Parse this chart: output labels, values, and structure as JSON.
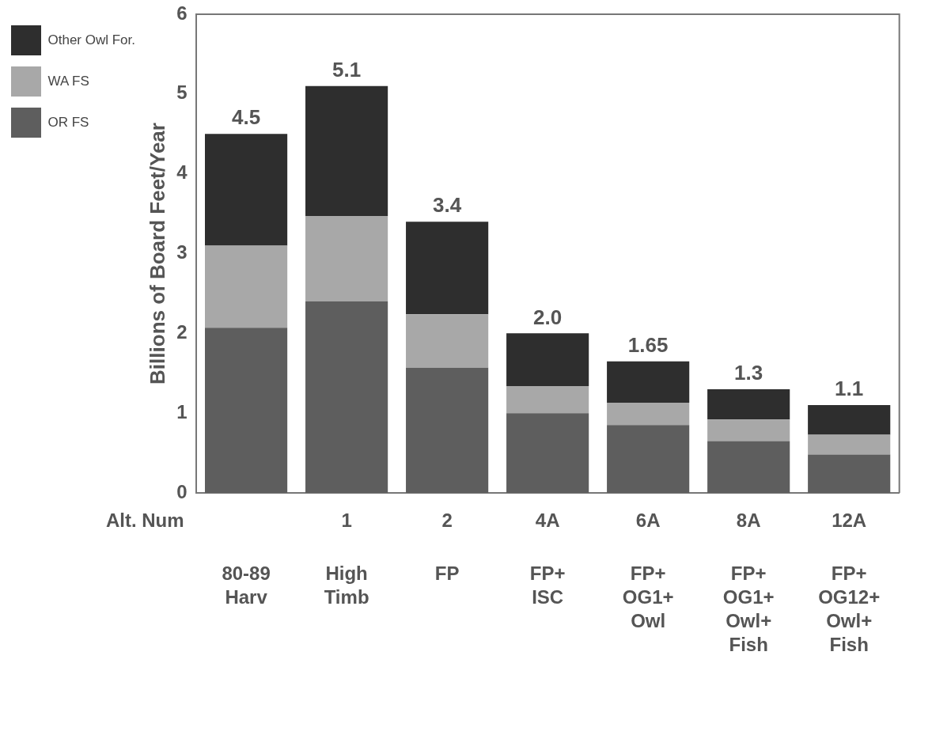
{
  "chart_data": {
    "type": "bar",
    "stacked": true,
    "ylabel": "Billions of Board Feet/Year",
    "categories": [
      "80-89\nHarv",
      "High\nTimb",
      "FP",
      "FP+\nISC",
      "FP+\nOG1+\nOwl",
      "FP+\nOG1+\nOwl+\nFish",
      "FP+\nOG12+\nOwl+\nFish"
    ],
    "series": [
      {
        "name": "OR FS",
        "color": "#5e5e5e",
        "values": [
          2.07,
          2.4,
          1.57,
          1.0,
          0.85,
          0.65,
          0.48
        ]
      },
      {
        "name": "WA FS",
        "color": "#a8a8a8",
        "values": [
          1.03,
          1.07,
          0.67,
          0.34,
          0.28,
          0.27,
          0.25
        ]
      },
      {
        "name": "Other Owl For.",
        "color": "#2e2e2e",
        "values": [
          1.4,
          1.63,
          1.16,
          0.66,
          0.52,
          0.38,
          0.37
        ]
      }
    ],
    "totals": [
      "4.5",
      "5.1",
      "3.4",
      "2.0",
      "1.65",
      "1.3",
      "1.1"
    ],
    "annotations": [
      "Alt. Num",
      "1",
      "2",
      "4A",
      "6A",
      "8A",
      "12A"
    ],
    "ylim": [
      0,
      6
    ],
    "yticks": [
      0,
      1,
      2,
      3,
      4,
      5,
      6
    ],
    "grid": false,
    "legend": "top left"
  }
}
